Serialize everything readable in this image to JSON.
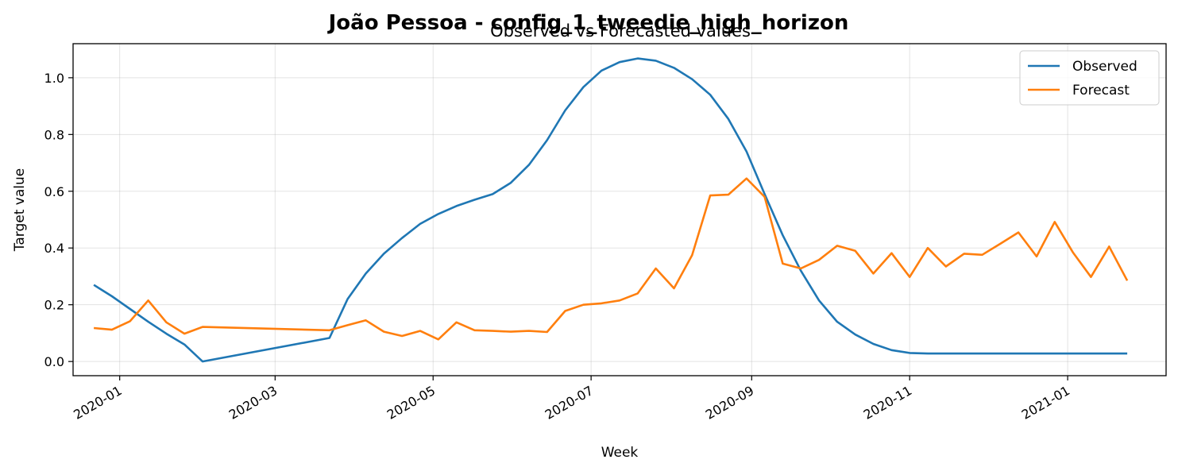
{
  "chart_data": {
    "type": "line",
    "title": "João Pessoa - config_1_tweedie_high_horizon",
    "subtitle": "Observed vs Forecasted values",
    "xlabel": "Week",
    "ylabel": "Target value",
    "x_ticks": [
      "2020-01",
      "2020-03",
      "2020-05",
      "2020-07",
      "2020-09",
      "2020-11",
      "2021-01"
    ],
    "y_ticks": [
      "0.0",
      "0.2",
      "0.4",
      "0.6",
      "0.8",
      "1.0"
    ],
    "xlim": [
      "2019-12-14",
      "2021-02-08"
    ],
    "ylim": [
      -0.05,
      1.12
    ],
    "grid": true,
    "legend_position": "top-right",
    "x": [
      "2019-12-22",
      "2019-12-29",
      "2020-01-05",
      "2020-01-12",
      "2020-01-19",
      "2020-01-26",
      "2020-02-02",
      "2020-03-22",
      "2020-03-29",
      "2020-04-05",
      "2020-04-12",
      "2020-04-19",
      "2020-04-26",
      "2020-05-03",
      "2020-05-10",
      "2020-05-17",
      "2020-05-24",
      "2020-05-31",
      "2020-06-07",
      "2020-06-14",
      "2020-06-21",
      "2020-06-28",
      "2020-07-05",
      "2020-07-12",
      "2020-07-19",
      "2020-07-26",
      "2020-08-02",
      "2020-08-09",
      "2020-08-16",
      "2020-08-23",
      "2020-08-30",
      "2020-09-06",
      "2020-09-13",
      "2020-09-20",
      "2020-09-27",
      "2020-10-04",
      "2020-10-11",
      "2020-10-18",
      "2020-10-25",
      "2020-11-01",
      "2020-11-08",
      "2020-11-15",
      "2020-11-22",
      "2020-11-29",
      "2020-12-06",
      "2020-12-13",
      "2020-12-20",
      "2020-12-27",
      "2021-01-03",
      "2021-01-10",
      "2021-01-17",
      "2021-01-24"
    ],
    "series": [
      {
        "name": "Observed",
        "color": "#1f77b4",
        "values": [
          0.27,
          0.23,
          0.185,
          0.14,
          0.098,
          0.06,
          0.0,
          0.083,
          0.22,
          0.31,
          0.38,
          0.435,
          0.485,
          0.52,
          0.548,
          0.57,
          0.59,
          0.63,
          0.693,
          0.78,
          0.885,
          0.967,
          1.025,
          1.055,
          1.068,
          1.06,
          1.035,
          0.995,
          0.94,
          0.855,
          0.74,
          0.59,
          0.445,
          0.32,
          0.215,
          0.14,
          0.095,
          0.062,
          0.04,
          0.03,
          0.028,
          0.028,
          0.028,
          0.028,
          0.028,
          0.028,
          0.028,
          0.028,
          0.028,
          0.028,
          0.028,
          0.028
        ]
      },
      {
        "name": "Forecast",
        "color": "#ff7f0e",
        "values": [
          0.118,
          0.112,
          0.142,
          0.215,
          0.138,
          0.098,
          0.122,
          0.11,
          0.128,
          0.145,
          0.105,
          0.09,
          0.108,
          0.078,
          0.138,
          0.11,
          0.108,
          0.105,
          0.108,
          0.104,
          0.178,
          0.2,
          0.205,
          0.215,
          0.24,
          0.328,
          0.258,
          0.375,
          0.585,
          0.588,
          0.645,
          0.58,
          0.345,
          0.328,
          0.358,
          0.408,
          0.39,
          0.31,
          0.382,
          0.298,
          0.4,
          0.335,
          0.38,
          0.376,
          0.415,
          0.455,
          0.37,
          0.492,
          0.385,
          0.298,
          0.405,
          0.285
        ]
      }
    ]
  }
}
